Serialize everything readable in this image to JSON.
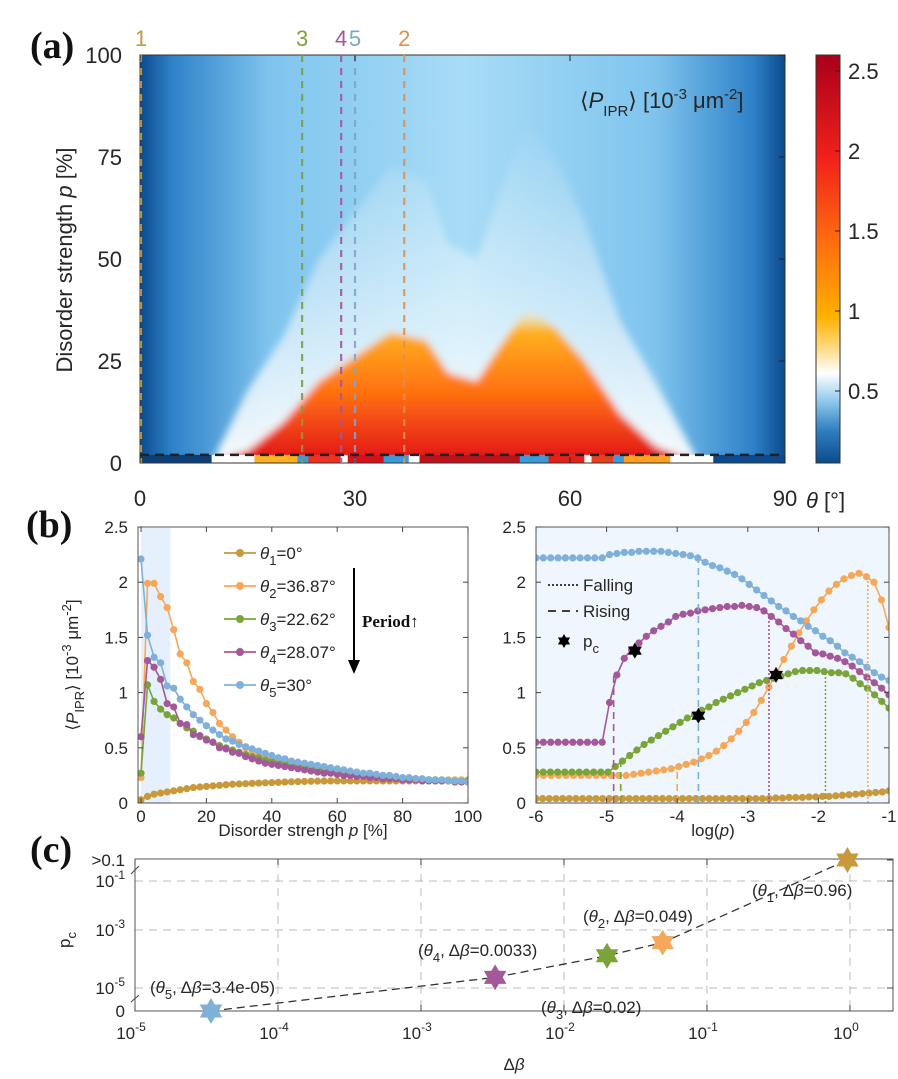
{
  "panels": {
    "a": "(a)",
    "b": "(b)",
    "c": "(c)"
  },
  "chart_data": [
    {
      "id": "a",
      "type": "heatmap",
      "title": "⟨P_IPR⟩ [10^-3 μm^-2]",
      "colorbar_label": "⟨P_IPR⟩ [10⁻³ μm⁻²]",
      "xlabel": "θ [°]",
      "ylabel": "Disorder strength p [%]",
      "xlim": [
        0,
        90
      ],
      "ylim": [
        0,
        100
      ],
      "xticks": [
        "0",
        "30",
        "60",
        "90"
      ],
      "yticks": [
        "0",
        "25",
        "50",
        "75",
        "100"
      ],
      "clim": [
        0.05,
        2.6
      ],
      "colorbar_ticks": [
        "0.5",
        "1",
        "1.5",
        "2",
        "2.5"
      ],
      "colorbar_tick_values": [
        0.5,
        1,
        1.5,
        2,
        2.5
      ],
      "marked_angles": [
        {
          "label": "1",
          "theta": 0,
          "color": "#c8983a"
        },
        {
          "label": "3",
          "theta": 22.62,
          "color": "#7aa33a"
        },
        {
          "label": "4",
          "theta": 28.07,
          "color": "#a4589a"
        },
        {
          "label": "5",
          "theta": 30,
          "color": "#7ba7cc"
        },
        {
          "label": "2",
          "theta": 36.87,
          "color": "#e09050"
        }
      ],
      "hline_p": 2,
      "ridge_profile": {
        "theta": [
          0,
          10,
          15,
          20,
          25,
          30,
          35,
          40,
          43,
          47,
          50,
          54,
          58,
          62,
          67,
          72,
          78,
          90
        ],
        "p_top": [
          0,
          0,
          3,
          10,
          20,
          26,
          32,
          30,
          22,
          20,
          28,
          38,
          33,
          25,
          12,
          4,
          0,
          0
        ]
      }
    },
    {
      "id": "b-left",
      "type": "line",
      "xlabel": "Disorder strengh p [%]",
      "ylabel": "⟨P_IPR⟩ [10⁻³ μm⁻²]",
      "xlim": [
        0,
        100
      ],
      "ylim": [
        0,
        2.5
      ],
      "xticks": [
        "0",
        "20",
        "40",
        "60",
        "80",
        "100"
      ],
      "yticks": [
        "0",
        "0.5",
        "1",
        "1.5",
        "2",
        "2.5"
      ],
      "shaded_region": [
        0,
        9
      ],
      "legend": {
        "placement": "top-right",
        "annotation": "Period↑"
      },
      "x": [
        0,
        2,
        4,
        6,
        8,
        10,
        12,
        14,
        16,
        18,
        20,
        22,
        24,
        26,
        28,
        30,
        32,
        34,
        36,
        38,
        40,
        42,
        44,
        46,
        48,
        50,
        52,
        54,
        56,
        58,
        60,
        62,
        64,
        66,
        68,
        70,
        72,
        74,
        76,
        78,
        80,
        82,
        84,
        86,
        88,
        90,
        92,
        94,
        96,
        98,
        100
      ],
      "series": [
        {
          "name": "θ1=0°",
          "sub": "1",
          "value": "=0°",
          "color": "#c8983a",
          "values": [
            0.03,
            0.06,
            0.08,
            0.09,
            0.1,
            0.11,
            0.12,
            0.13,
            0.14,
            0.145,
            0.15,
            0.155,
            0.16,
            0.165,
            0.17,
            0.172,
            0.175,
            0.178,
            0.18,
            0.183,
            0.185,
            0.187,
            0.19,
            0.192,
            0.194,
            0.195,
            0.197,
            0.198,
            0.199,
            0.2,
            0.2,
            0.2,
            0.2,
            0.2,
            0.2,
            0.2,
            0.2,
            0.2,
            0.2,
            0.2,
            0.2,
            0.2,
            0.2,
            0.2,
            0.2,
            0.2,
            0.2,
            0.2,
            0.2,
            0.2,
            0.2
          ]
        },
        {
          "name": "θ2=36.87°",
          "sub": "2",
          "value": "=36.87°",
          "color": "#f5a85a",
          "values": [
            0.23,
            1.99,
            1.99,
            1.87,
            1.77,
            1.57,
            1.35,
            1.27,
            1.1,
            1.03,
            0.9,
            0.82,
            0.72,
            0.66,
            0.6,
            0.55,
            0.5,
            0.46,
            0.43,
            0.41,
            0.39,
            0.37,
            0.35,
            0.33,
            0.32,
            0.31,
            0.3,
            0.29,
            0.28,
            0.27,
            0.27,
            0.26,
            0.25,
            0.25,
            0.24,
            0.24,
            0.23,
            0.23,
            0.23,
            0.22,
            0.22,
            0.22,
            0.22,
            0.21,
            0.21,
            0.21,
            0.21,
            0.21,
            0.21,
            0.21,
            0.21
          ]
        },
        {
          "name": "θ3=22.62°",
          "sub": "3",
          "value": "=22.62°",
          "color": "#7aa33a",
          "values": [
            0.27,
            1.07,
            0.92,
            0.85,
            0.8,
            0.77,
            0.72,
            0.68,
            0.65,
            0.6,
            0.58,
            0.55,
            0.52,
            0.5,
            0.48,
            0.46,
            0.44,
            0.42,
            0.41,
            0.39,
            0.38,
            0.37,
            0.36,
            0.35,
            0.34,
            0.33,
            0.32,
            0.31,
            0.3,
            0.29,
            0.28,
            0.27,
            0.27,
            0.26,
            0.25,
            0.25,
            0.24,
            0.24,
            0.23,
            0.23,
            0.22,
            0.22,
            0.22,
            0.21,
            0.21,
            0.21,
            0.2,
            0.2,
            0.2,
            0.2,
            0.2
          ]
        },
        {
          "name": "θ4=28.07°",
          "sub": "4",
          "value": "=28.07°",
          "color": "#a4589a",
          "values": [
            0.6,
            1.29,
            1.23,
            1.12,
            0.9,
            0.87,
            0.72,
            0.71,
            0.62,
            0.61,
            0.57,
            0.55,
            0.5,
            0.49,
            0.46,
            0.45,
            0.42,
            0.4,
            0.38,
            0.36,
            0.35,
            0.34,
            0.33,
            0.32,
            0.31,
            0.3,
            0.29,
            0.28,
            0.27,
            0.27,
            0.26,
            0.25,
            0.25,
            0.24,
            0.24,
            0.23,
            0.23,
            0.22,
            0.22,
            0.22,
            0.21,
            0.21,
            0.21,
            0.2,
            0.2,
            0.2,
            0.2,
            0.2,
            0.19,
            0.19,
            0.19
          ]
        },
        {
          "name": "θ5=30°",
          "sub": "5",
          "value": "=30°",
          "color": "#7eb0da",
          "values": [
            2.21,
            1.52,
            1.32,
            1.27,
            1.06,
            1.04,
            0.94,
            0.87,
            0.8,
            0.75,
            0.7,
            0.66,
            0.62,
            0.58,
            0.56,
            0.53,
            0.51,
            0.49,
            0.47,
            0.45,
            0.43,
            0.41,
            0.4,
            0.38,
            0.37,
            0.36,
            0.35,
            0.34,
            0.33,
            0.32,
            0.31,
            0.3,
            0.29,
            0.28,
            0.27,
            0.27,
            0.26,
            0.25,
            0.25,
            0.24,
            0.23,
            0.23,
            0.22,
            0.22,
            0.21,
            0.21,
            0.21,
            0.2,
            0.2,
            0.2,
            0.19
          ]
        }
      ]
    },
    {
      "id": "b-right",
      "type": "line",
      "xlabel": "log(p)",
      "xlim": [
        -6,
        -1
      ],
      "ylim": [
        0,
        2.5
      ],
      "xticks": [
        "-6",
        "-5",
        "-4",
        "-3",
        "-2",
        "-1"
      ],
      "yticks": [
        "0",
        "0.5",
        "1",
        "1.5",
        "2",
        "2.5"
      ],
      "legend": {
        "placement": "top-left",
        "entries": [
          "Falling",
          "Rising",
          "p_c"
        ]
      },
      "x_start": -6,
      "x_step": 0.1,
      "series": [
        {
          "name": "θ1",
          "color": "#c8983a",
          "values": [
            0.04,
            0.04,
            0.04,
            0.04,
            0.04,
            0.04,
            0.04,
            0.04,
            0.04,
            0.04,
            0.04,
            0.04,
            0.04,
            0.04,
            0.04,
            0.04,
            0.04,
            0.04,
            0.04,
            0.04,
            0.04,
            0.04,
            0.04,
            0.04,
            0.04,
            0.04,
            0.04,
            0.04,
            0.04,
            0.04,
            0.04,
            0.04,
            0.04,
            0.04,
            0.04,
            0.04,
            0.045,
            0.045,
            0.05,
            0.05,
            0.05,
            0.055,
            0.055,
            0.06,
            0.06,
            0.065,
            0.07,
            0.075,
            0.08,
            0.085,
            0.09,
            0.095,
            0.1,
            0.11
          ]
        },
        {
          "name": "θ2",
          "color": "#f5a85a",
          "values": [
            0.25,
            0.25,
            0.25,
            0.25,
            0.25,
            0.25,
            0.25,
            0.25,
            0.25,
            0.25,
            0.25,
            0.25,
            0.25,
            0.26,
            0.27,
            0.28,
            0.29,
            0.3,
            0.31,
            0.33,
            0.35,
            0.37,
            0.4,
            0.43,
            0.47,
            0.52,
            0.58,
            0.65,
            0.73,
            0.82,
            0.93,
            1.05,
            1.18,
            1.3,
            1.42,
            1.54,
            1.65,
            1.75,
            1.84,
            1.92,
            1.98,
            2.03,
            2.06,
            2.08,
            2.05,
            2.0,
            1.84,
            1.59
          ]
        },
        {
          "name": "θ3",
          "color": "#7aa33a",
          "values": [
            0.28,
            0.28,
            0.28,
            0.28,
            0.28,
            0.28,
            0.28,
            0.28,
            0.28,
            0.28,
            0.28,
            0.33,
            0.38,
            0.43,
            0.48,
            0.53,
            0.57,
            0.61,
            0.65,
            0.69,
            0.73,
            0.77,
            0.8,
            0.84,
            0.87,
            0.91,
            0.94,
            0.97,
            1.0,
            1.03,
            1.06,
            1.09,
            1.11,
            1.13,
            1.15,
            1.17,
            1.19,
            1.2,
            1.2,
            1.2,
            1.19,
            1.18,
            1.18,
            1.17,
            1.13,
            1.08,
            1.04,
            0.98,
            0.92,
            0.86
          ]
        },
        {
          "name": "θ4",
          "color": "#a4589a",
          "values": [
            0.55,
            0.55,
            0.55,
            0.55,
            0.55,
            0.55,
            0.55,
            0.55,
            0.55,
            0.55,
            0.91,
            1.16,
            1.31,
            1.39,
            1.45,
            1.51,
            1.56,
            1.6,
            1.64,
            1.69,
            1.71,
            1.72,
            1.74,
            1.75,
            1.76,
            1.77,
            1.78,
            1.78,
            1.79,
            1.78,
            1.77,
            1.74,
            1.69,
            1.64,
            1.58,
            1.53,
            1.47,
            1.42,
            1.36,
            1.35,
            1.33,
            1.31,
            1.28,
            1.24,
            1.19,
            1.14,
            1.09,
            1.04,
            0.98
          ]
        },
        {
          "name": "θ5",
          "color": "#7eb0da",
          "values": [
            2.22,
            2.22,
            2.22,
            2.22,
            2.22,
            2.22,
            2.22,
            2.22,
            2.22,
            2.22,
            2.25,
            2.26,
            2.27,
            2.27,
            2.28,
            2.28,
            2.28,
            2.28,
            2.27,
            2.26,
            2.25,
            2.24,
            2.22,
            2.18,
            2.15,
            2.13,
            2.1,
            2.07,
            2.03,
            1.98,
            1.93,
            1.88,
            1.83,
            1.78,
            1.74,
            1.69,
            1.65,
            1.6,
            1.56,
            1.51,
            1.47,
            1.42,
            1.36,
            1.32,
            1.28,
            1.23,
            1.18,
            1.14,
            1.11
          ]
        }
      ],
      "rising_lines": [
        {
          "series": "θ4",
          "x": -4.9,
          "color": "#a4589a"
        },
        {
          "series": "θ3",
          "x": -4.8,
          "color": "#7aa33a"
        },
        {
          "series": "θ2",
          "x": -4.0,
          "color": "#f5a85a"
        },
        {
          "series": "θ5",
          "x": -3.7,
          "color": "#7eb0da"
        }
      ],
      "falling_lines": [
        {
          "series": "θ4",
          "x": -2.7,
          "color": "#a4589a"
        },
        {
          "series": "θ3",
          "x": -1.9,
          "color": "#7aa33a"
        },
        {
          "series": "θ2",
          "x": -1.3,
          "color": "#f5a85a"
        }
      ],
      "pc_markers": [
        {
          "x": -4.6,
          "y": 1.38
        },
        {
          "x": -3.7,
          "y": 0.79
        },
        {
          "x": -2.6,
          "y": 1.16
        }
      ]
    },
    {
      "id": "c",
      "type": "scatter",
      "xlabel": "Δβ",
      "ylabel": "p_c",
      "xscale": "log",
      "xlim": [
        1e-05,
        2
      ],
      "xticks": [
        {
          "exp": "-5"
        },
        {
          "exp": "-4"
        },
        {
          "exp": "-3"
        },
        {
          "exp": "-2"
        },
        {
          "exp": "-1"
        },
        {
          "exp": "0"
        }
      ],
      "yticks": [
        "0",
        "10⁻⁵",
        "10⁻³",
        "10⁻¹",
        ">0.1"
      ],
      "points": [
        {
          "label": "θ5",
          "sub": "5",
          "delta_beta": 3.4e-05,
          "delta_text": "3.4e-05",
          "p_c": 0,
          "color": "#7eb0da"
        },
        {
          "label": "θ4",
          "sub": "4",
          "delta_beta": 0.0033,
          "delta_text": "0.0033",
          "p_c": 2.5e-05,
          "color": "#a4589a"
        },
        {
          "label": "θ3",
          "sub": "3",
          "delta_beta": 0.02,
          "delta_text": "0.02",
          "p_c": 0.00016,
          "color": "#7aa33a"
        },
        {
          "label": "θ2",
          "sub": "2",
          "delta_beta": 0.049,
          "delta_text": "0.049",
          "p_c": 0.0005,
          "color": "#f5a85a"
        },
        {
          "label": "θ1",
          "sub": "1",
          "delta_beta": 0.96,
          "delta_text": "0.96",
          "p_c": ">0.1",
          "color": "#c8983a"
        }
      ]
    }
  ]
}
